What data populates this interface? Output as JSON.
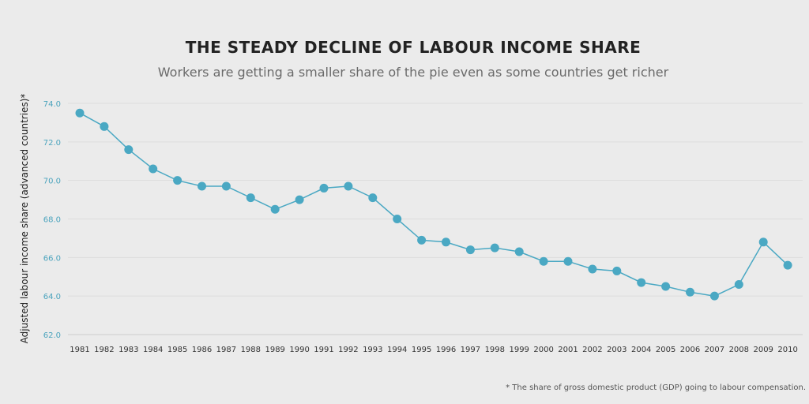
{
  "chart_data": {
    "type": "line",
    "title": "THE STEADY DECLINE OF LABOUR INCOME SHARE",
    "subtitle": "Workers are getting a smaller share of the pie even as some countries get richer",
    "xlabel": "",
    "ylabel": "Adjusted labour income share (advanced countries)*",
    "footnote": "* The share of gross domestic product (GDP) going to labour compensation.",
    "ylim": [
      62.0,
      74.0
    ],
    "yticks": [
      "74.0",
      "72.0",
      "70.0",
      "68.0",
      "66.0",
      "64.0",
      "62.0"
    ],
    "grid": true,
    "color": "#4aa8c3",
    "series": [
      {
        "name": "Adjusted labour income share",
        "x": [
          "1981",
          "1982",
          "1983",
          "1984",
          "1985",
          "1986",
          "1987",
          "1988",
          "1989",
          "1990",
          "1991",
          "1992",
          "1993",
          "1994",
          "1995",
          "1996",
          "1997",
          "1998",
          "1999",
          "2000",
          "2001",
          "2002",
          "2003",
          "2004",
          "2005",
          "2006",
          "2007",
          "2008",
          "2009",
          "2010"
        ],
        "values": [
          73.5,
          72.8,
          71.6,
          70.6,
          70.0,
          69.7,
          69.7,
          69.1,
          68.5,
          69.0,
          69.6,
          69.7,
          69.1,
          68.0,
          66.9,
          66.8,
          66.4,
          66.5,
          66.3,
          65.8,
          65.8,
          65.4,
          65.3,
          64.7,
          64.5,
          64.2,
          64.0,
          64.6,
          66.8,
          65.6
        ]
      }
    ]
  }
}
